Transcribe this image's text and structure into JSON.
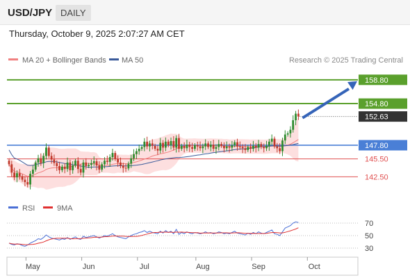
{
  "header": {
    "symbol": "USD/JPY",
    "timeframe": "DAILY",
    "datetime": "Thursday, October 9, 2025 2:07:27 AM CET"
  },
  "legend": {
    "ma20": "MA 20 + Bollinger Bands",
    "ma50": "MA 50",
    "credit": "Research © 2025 Trading Central",
    "rsi": "RSI",
    "rsi_ma": "9MA"
  },
  "colors": {
    "ma20": "#f08080",
    "ma50": "#3a5a9a",
    "band_fill": "#fdd9d9",
    "up_candle": "#2e8b2e",
    "down_candle": "#c0392b",
    "resistance": "#5aa02c",
    "pivot": "#4a7fd6",
    "support": "#e05050",
    "rsi": "#4a6fd6",
    "rsi_ma": "#e03030",
    "arrow": "#3564b8",
    "current_price_bg": "#333333"
  },
  "chart_data": {
    "type": "candlestick",
    "price_axis": {
      "ylim": [
        139.5,
        161
      ]
    },
    "levels": [
      {
        "label": "158.80",
        "value": 158.8,
        "kind": "resistance"
      },
      {
        "label": "154.80",
        "value": 154.8,
        "kind": "resistance"
      },
      {
        "label": "152.63",
        "value": 152.63,
        "kind": "current"
      },
      {
        "label": "147.80",
        "value": 147.8,
        "kind": "pivot"
      },
      {
        "label": "145.50",
        "value": 145.5,
        "kind": "support"
      },
      {
        "label": "142.50",
        "value": 142.5,
        "kind": "support"
      }
    ],
    "x_ticks": [
      "May",
      "Jun",
      "Jul",
      "Aug",
      "Sep",
      "Oct"
    ],
    "x_tick_index": [
      9,
      30,
      51,
      73,
      94,
      115
    ],
    "close": [
      144.6,
      143.2,
      142.4,
      143.1,
      142.6,
      142.0,
      141.6,
      141.2,
      143.0,
      143.7,
      144.9,
      145.6,
      144.8,
      146.0,
      147.4,
      146.0,
      145.4,
      144.8,
      144.3,
      143.6,
      144.2,
      143.8,
      144.9,
      143.6,
      144.4,
      145.2,
      143.8,
      143.2,
      144.9,
      144.3,
      144.5,
      144.8,
      145.1,
      144.4,
      143.7,
      144.6,
      145.2,
      145.0,
      145.8,
      146.5,
      145.5,
      144.9,
      144.4,
      144.0,
      143.9,
      144.7,
      145.6,
      146.3,
      146.8,
      147.2,
      147.5,
      148.4,
      147.6,
      148.1,
      147.7,
      147.2,
      146.9,
      148.2,
      147.4,
      148.4,
      147.8,
      148.5,
      147.4,
      149.0,
      147.2,
      147.7,
      147.3,
      147.9,
      147.5,
      147.2,
      147.8,
      147.6,
      147.3,
      147.6,
      148.1,
      147.5,
      147.9,
      147.2,
      147.5,
      148.0,
      147.7,
      147.3,
      147.6,
      147.4,
      147.8,
      148.3,
      147.6,
      147.5,
      147.3,
      147.0,
      147.5,
      147.2,
      147.7,
      147.4,
      148.0,
      147.5,
      147.3,
      147.7,
      148.4,
      148.9,
      147.6,
      147.3,
      146.8,
      148.6,
      149.6,
      149.8,
      150.4,
      152.0,
      153.1,
      152.63
    ],
    "rsi": [
      38,
      36,
      35,
      37,
      36,
      34,
      33,
      35,
      38,
      40,
      42,
      45,
      44,
      47,
      51,
      48,
      46,
      45,
      44,
      43,
      45,
      44,
      47,
      44,
      46,
      48,
      45,
      44,
      49,
      47,
      48,
      49,
      50,
      48,
      46,
      48,
      50,
      49,
      51,
      53,
      50,
      48,
      47,
      46,
      45,
      48,
      50,
      52,
      53,
      55,
      56,
      58,
      55,
      57,
      55,
      54,
      53,
      57,
      54,
      58,
      55,
      57,
      53,
      60,
      52,
      55,
      53,
      56,
      54,
      53,
      55,
      54,
      53,
      54,
      56,
      54,
      55,
      53,
      54,
      56,
      55,
      53,
      54,
      53,
      55,
      57,
      54,
      53,
      52,
      51,
      54,
      52,
      55,
      53,
      56,
      54,
      53,
      55,
      57,
      59,
      53,
      52,
      50,
      56,
      62,
      64,
      66,
      70,
      72,
      71
    ],
    "rsi_axis": {
      "ylim": [
        20,
        80
      ],
      "ticks": [
        70,
        50,
        30
      ]
    }
  }
}
